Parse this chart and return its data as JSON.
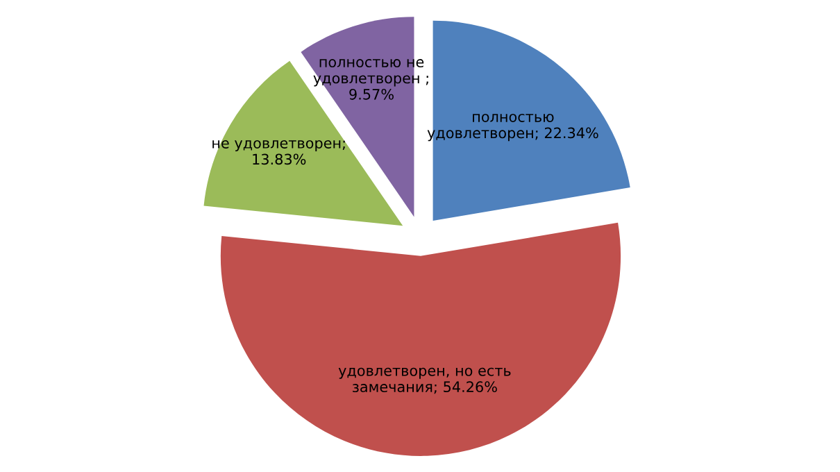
{
  "chart_data": {
    "type": "pie",
    "categories": [
      "полностью удовлетворен; 22.34%",
      "удовлетворен, но есть замечания; 54.26%",
      "не удовлетворен; 13.83%",
      "полностью не удовлетворен ; 9.57%"
    ],
    "values": [
      22.34,
      54.26,
      13.83,
      9.57
    ],
    "colors": [
      "#4f81bd",
      "#c0504d",
      "#9bbb59",
      "#8064a2"
    ],
    "legend": false
  }
}
